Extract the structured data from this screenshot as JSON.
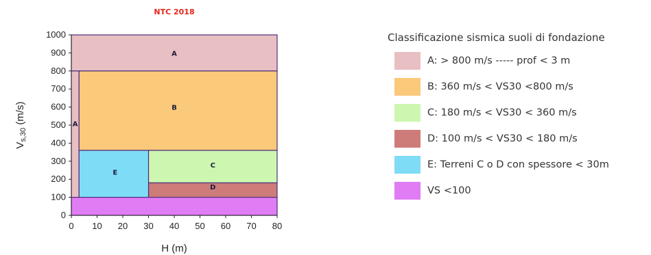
{
  "chart_data": {
    "type": "area",
    "title": "NTC 2018",
    "xlabel": "H (m)",
    "ylabel": "Vs,30 (m/s)",
    "xlim": [
      0,
      80
    ],
    "ylim": [
      0,
      1000
    ],
    "x_ticks": [
      "0",
      "10",
      "20",
      "30",
      "40",
      "50",
      "60",
      "70",
      "80"
    ],
    "y_ticks": [
      "0",
      "100",
      "200",
      "300",
      "400",
      "500",
      "600",
      "700",
      "800",
      "900",
      "1000"
    ],
    "grid": false,
    "zones": [
      {
        "label": "A",
        "x": [
          0,
          80
        ],
        "y": [
          800,
          1000
        ],
        "color": "#e8bfc3",
        "label_at": [
          40,
          900
        ]
      },
      {
        "label": "A",
        "x": [
          0,
          3
        ],
        "y": [
          100,
          800
        ],
        "color": "#e8bfc3",
        "label_at": [
          1.5,
          510
        ]
      },
      {
        "label": "B",
        "x": [
          3,
          80
        ],
        "y": [
          360,
          800
        ],
        "color": "#fbc97a",
        "label_at": [
          40,
          600
        ]
      },
      {
        "label": "C",
        "x": [
          30,
          80
        ],
        "y": [
          180,
          360
        ],
        "color": "#cdf7b0",
        "label_at": [
          55,
          280
        ]
      },
      {
        "label": "D",
        "x": [
          30,
          80
        ],
        "y": [
          100,
          180
        ],
        "color": "#cd7c7a",
        "label_at": [
          55,
          160
        ]
      },
      {
        "label": "E",
        "x": [
          3,
          30
        ],
        "y": [
          100,
          360
        ],
        "color": "#7fdcf7",
        "label_at": [
          17,
          240
        ]
      },
      {
        "label": "",
        "x": [
          0,
          80
        ],
        "y": [
          0,
          100
        ],
        "color": "#e07cf4",
        "label_at": null
      }
    ],
    "legend_position": "right"
  },
  "legend": {
    "title": "Classificazione sismica suoli di fondazione",
    "items": [
      {
        "label": "A: > 800 m/s ----- prof < 3 m",
        "color": "#e8bfc3"
      },
      {
        "label": "B: 360 m/s < VS30 <800 m/s",
        "color": "#fbc97a"
      },
      {
        "label": "C: 180 m/s < VS30 < 360 m/s",
        "color": "#cdf7b0"
      },
      {
        "label": "D: 100 m/s < VS30 < 180 m/s",
        "color": "#cd7c7a"
      },
      {
        "label": "E: Terreni C o D con spessore < 30m",
        "color": "#7fdcf7"
      },
      {
        "label": "VS <100",
        "color": "#e07cf4"
      }
    ]
  }
}
